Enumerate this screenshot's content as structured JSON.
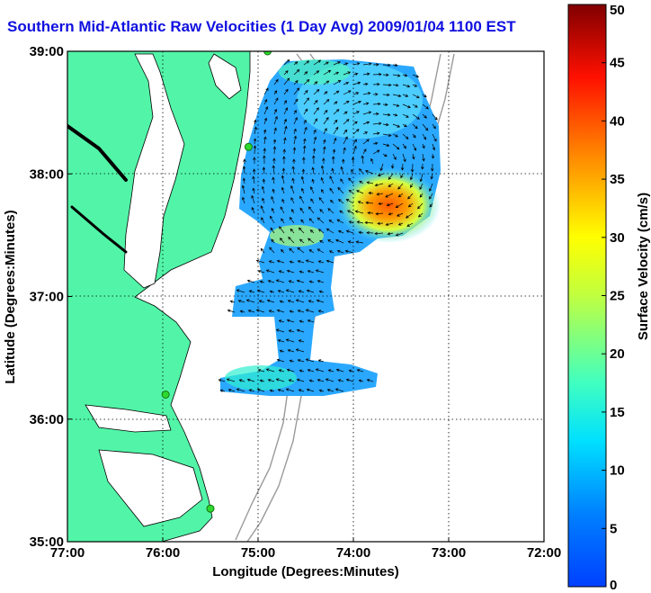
{
  "title": "Southern Mid-Atlantic Raw Velocities (1 Day Avg) 2009/01/04 1100 EST",
  "x_axis": {
    "label": "Longitude (Degrees:Minutes)",
    "ticks": [
      {
        "value": -77,
        "label": "77:00"
      },
      {
        "value": -76,
        "label": "76:00"
      },
      {
        "value": -75,
        "label": "75:00"
      },
      {
        "value": -74,
        "label": "74:00"
      },
      {
        "value": -73,
        "label": "73:00"
      },
      {
        "value": -72,
        "label": "72:00"
      }
    ]
  },
  "y_axis": {
    "label": "Latitude (Degrees:Minutes)",
    "ticks": [
      {
        "value": 35,
        "label": "35:00"
      },
      {
        "value": 36,
        "label": "36:00"
      },
      {
        "value": 37,
        "label": "37:00"
      },
      {
        "value": 38,
        "label": "38:00"
      },
      {
        "value": 39,
        "label": "39:00"
      }
    ]
  },
  "colorbar": {
    "label": "Surface Velocity (cm/s)",
    "min": 0,
    "max": 50,
    "ticks": [
      {
        "value": 0,
        "label": "0"
      },
      {
        "value": 5,
        "label": "5"
      },
      {
        "value": 10,
        "label": "10"
      },
      {
        "value": 15,
        "label": "15"
      },
      {
        "value": 20,
        "label": "20"
      },
      {
        "value": 25,
        "label": "25"
      },
      {
        "value": 30,
        "label": "30"
      },
      {
        "value": 35,
        "label": "35"
      },
      {
        "value": 40,
        "label": "40"
      },
      {
        "value": 45,
        "label": "45"
      },
      {
        "value": 50,
        "label": "50"
      }
    ]
  },
  "colors": {
    "land": "#52f5a8",
    "water": "#ffffff",
    "title": "#1010e0",
    "bathymetry": "#9a9a9a",
    "station": "#2ed82e"
  },
  "map_extent": {
    "lon": [
      -77,
      -72
    ],
    "lat": [
      35,
      39
    ]
  },
  "hf_radar_stations": [
    {
      "lon": -74.9,
      "lat": 39.0
    },
    {
      "lon": -75.1,
      "lat": 38.22
    },
    {
      "lon": -75.97,
      "lat": 36.2
    },
    {
      "lon": -75.5,
      "lat": 35.27
    }
  ]
}
